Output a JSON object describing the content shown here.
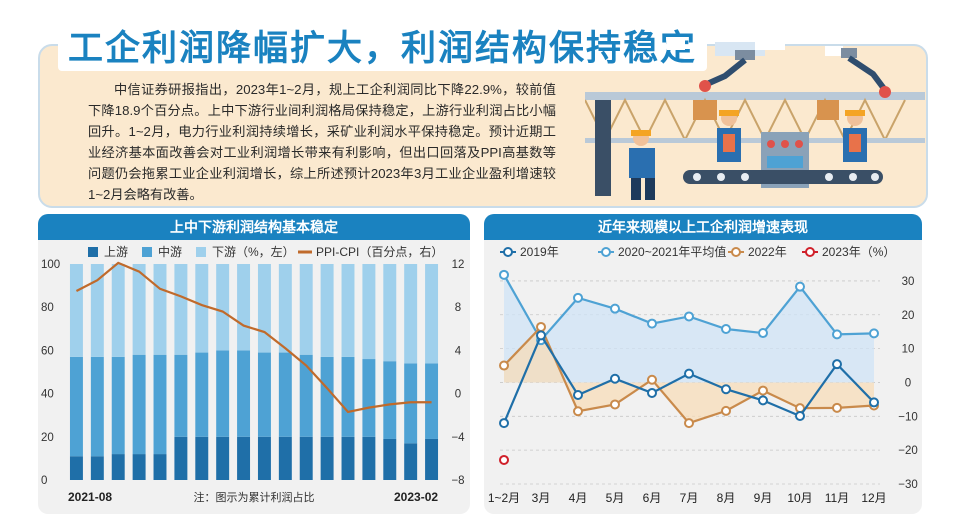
{
  "title": "工企利润降幅扩大，利润结构保持稳定",
  "body_text": "中信证券研报指出，2023年1~2月，规上工企利润同比下降22.9%，较前值下降18.9个百分点。上中下游行业间利润格局保持稳定，上游行业利润占比小幅回升。1~2月，电力行业利润持续增长，采矿业利润水平保持稳定。预计近期工业经济基本面改善会对工业利润增长带来有利影响，但出口回落及PPI高基数等问题仍会拖累工业企业利润增长，综上所述预计2023年3月工业企业盈利增速较1~2月会略有改善。",
  "left_panel": {
    "title": "上中下游利润结构基本稳定",
    "note": "注：图示为累计利润占比"
  },
  "right_panel": {
    "title": "近年来规模以上工企利润增速表现"
  },
  "chart_data": [
    {
      "type": "bar",
      "stacked": true,
      "title": "上中下游利润结构基本稳定",
      "legend": [
        "上游",
        "中游",
        "下游（%，左）",
        "PPI-CPI（百分点，右）"
      ],
      "categories": [
        "2021-08",
        "",
        "",
        "",
        "",
        "",
        "",
        "",
        "",
        "",
        "",
        "",
        "",
        "",
        "",
        "",
        "",
        "2023-02"
      ],
      "x_tick_labels": [
        "2021-08",
        "2023-02"
      ],
      "series": [
        {
          "name": "上游",
          "values": [
            11,
            11,
            12,
            12,
            12,
            20,
            20,
            20,
            20,
            20,
            20,
            20,
            20,
            20,
            20,
            19,
            17,
            19
          ]
        },
        {
          "name": "中游",
          "values": [
            46,
            46,
            45,
            46,
            46,
            38,
            39,
            40,
            40,
            39,
            39,
            38,
            37,
            37,
            36,
            36,
            37,
            35
          ]
        },
        {
          "name": "下游（%，左）",
          "values": [
            43,
            43,
            43,
            42,
            42,
            42,
            41,
            40,
            40,
            41,
            41,
            42,
            43,
            43,
            44,
            45,
            46,
            46
          ]
        },
        {
          "name": "PPI-CPI（百分点，右）",
          "type": "line",
          "axis": "right",
          "values": [
            9.5,
            10.5,
            12.1,
            11.3,
            9.7,
            9,
            8.2,
            7.6,
            6.3,
            5.7,
            4.2,
            2.6,
            0.5,
            -1.7,
            -1.3,
            -1,
            -0.8,
            -0.8
          ]
        }
      ],
      "y_left": {
        "range": [
          0,
          100
        ],
        "ticks": [
          "0",
          "20",
          "40",
          "60",
          "80",
          "100"
        ]
      },
      "y_right": {
        "range": [
          -8,
          12
        ],
        "ticks": [
          "12",
          "8",
          "4",
          "0",
          "−4",
          "−8"
        ]
      },
      "colors": {
        "上游": "#1f6fa8",
        "中游": "#4ea2d4",
        "下游（%，左）": "#9fd0ec",
        "PPI-CPI（百分点，右）": "#c06a2b"
      }
    },
    {
      "type": "line",
      "title": "近年来规模以上工企利润增速表现",
      "categories": [
        "1~2月",
        "3月",
        "4月",
        "5月",
        "6月",
        "7月",
        "8月",
        "9月",
        "10月",
        "11月",
        "12月"
      ],
      "series": [
        {
          "name": "2019年",
          "values": [
            -12,
            13.9,
            -3.7,
            1.1,
            -3.1,
            2.6,
            -2,
            -5.3,
            -9.9,
            5.4,
            -5.9
          ]
        },
        {
          "name": "2020~2021年平均值",
          "values": [
            31.8,
            12.5,
            25,
            21.8,
            17.4,
            19.5,
            15.8,
            14.6,
            28.3,
            14.2,
            14.5
          ]
        },
        {
          "name": "2022年",
          "values": [
            5,
            16.4,
            -8.5,
            -6.5,
            0.8,
            -12,
            -8.4,
            -2.4,
            -7.6,
            -7.5,
            -6.8
          ]
        },
        {
          "name": "2023年（%）",
          "values": [
            -22.9,
            null,
            null,
            null,
            null,
            null,
            null,
            null,
            null,
            null,
            null
          ]
        }
      ],
      "y_right": {
        "range": [
          -30,
          35
        ],
        "ticks": [
          "30",
          "20",
          "10",
          "0",
          "−10",
          "−20",
          "−30"
        ]
      },
      "colors": {
        "2019年": "#1f6fa8",
        "2020~2021年平均值": "#4ea2d4",
        "2022年": "#c98a4b",
        "2023年（%）": "#d0202a",
        "area_pos": "#cfe3f5",
        "area_neg": "#f7dcb8"
      }
    }
  ]
}
